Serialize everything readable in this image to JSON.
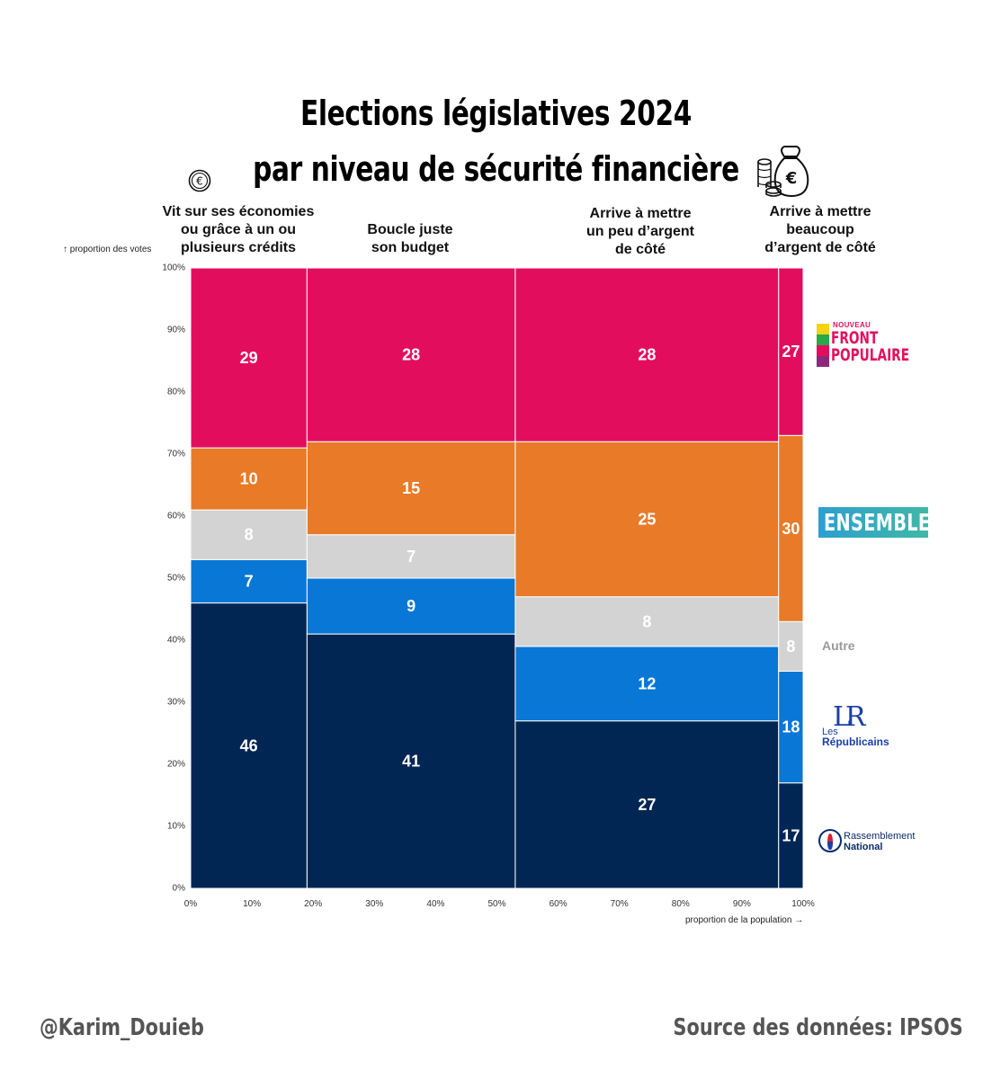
{
  "title": {
    "line1": "Elections législatives 2024",
    "line2": "par niveau de sécurité financière"
  },
  "icons": {
    "coin": "euro-coin-icon",
    "bag": "money-bag-icon"
  },
  "axes": {
    "y_label": "↑ proportion des votes",
    "x_label": "proportion de la population →",
    "y_ticks": [
      "0%",
      "10%",
      "20%",
      "30%",
      "40%",
      "50%",
      "60%",
      "70%",
      "80%",
      "90%",
      "100%"
    ],
    "x_ticks": [
      "0%",
      "10%",
      "20%",
      "30%",
      "40%",
      "50%",
      "60%",
      "70%",
      "80%",
      "90%",
      "100%"
    ]
  },
  "columns": [
    {
      "label": "Vit sur ses économies\nou grâce à un ou\nplusieurs crédits"
    },
    {
      "label": "Boucle juste\nson budget"
    },
    {
      "label": "Arrive à mettre\nun peu d’argent\nde côté"
    },
    {
      "label": "Arrive à mettre\nbeaucoup\nd’argent de côté"
    }
  ],
  "legend": {
    "nfp": {
      "small": "NOUVEAU",
      "line1": "FRONT",
      "line2": "POPULAIRE"
    },
    "ensemble": "ENSEMBLE",
    "autre": "Autre",
    "lr": {
      "mark": "LR",
      "les": "Les",
      "name": "Républicains"
    },
    "rn": {
      "line1": "Rassemblement",
      "line2": "National"
    }
  },
  "colors": {
    "nfp": "#e30d5e",
    "ensemble": "#e87a28",
    "autre": "#d3d3d3",
    "lr": "#0877d6",
    "rn": "#022654"
  },
  "chart_data": {
    "type": "mosaic",
    "title": "Elections législatives 2024 par niveau de sécurité financière",
    "xlabel": "proportion de la population",
    "ylabel": "proportion des votes",
    "xlim": [
      0,
      100
    ],
    "ylim": [
      0,
      100
    ],
    "categories": [
      "Vit sur ses économies ou grâce à un ou plusieurs crédits",
      "Boucle juste son budget",
      "Arrive à mettre un peu d’argent de côté",
      "Arrive à mettre beaucoup d’argent de côté"
    ],
    "population_share": [
      19,
      34,
      43,
      4
    ],
    "series_order_bottom_to_top": [
      "RN",
      "LR",
      "Autre",
      "Ensemble",
      "NFP"
    ],
    "series": [
      {
        "name": "RN",
        "color_key": "rn",
        "values": [
          46,
          41,
          27,
          17
        ]
      },
      {
        "name": "LR",
        "color_key": "lr",
        "values": [
          7,
          9,
          12,
          18
        ]
      },
      {
        "name": "Autre",
        "color_key": "autre",
        "values": [
          8,
          7,
          8,
          8
        ]
      },
      {
        "name": "Ensemble",
        "color_key": "ensemble",
        "values": [
          10,
          15,
          25,
          30
        ]
      },
      {
        "name": "NFP",
        "color_key": "nfp",
        "values": [
          29,
          28,
          28,
          27
        ]
      }
    ]
  },
  "footer": {
    "author": "@Karim_Douieb",
    "source": "Source des données: IPSOS"
  }
}
